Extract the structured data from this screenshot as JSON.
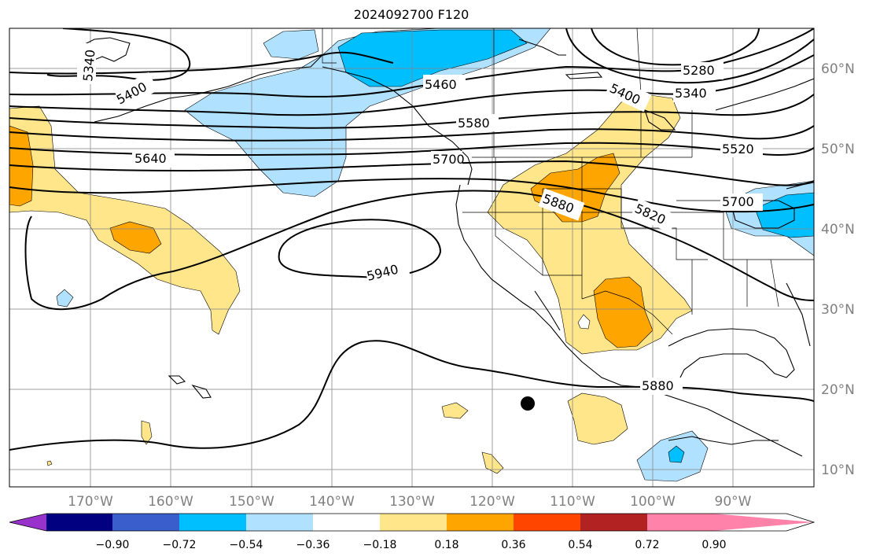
{
  "title": "2024092700 F120",
  "axes": {
    "lon_labels": [
      "170°W",
      "160°W",
      "150°W",
      "140°W",
      "130°W",
      "120°W",
      "110°W",
      "100°W",
      "90°W"
    ],
    "lat_labels": [
      "60°N",
      "50°N",
      "40°N",
      "30°N",
      "20°N",
      "10°N"
    ]
  },
  "contour_labels": [
    "5340",
    "5400",
    "5460",
    "5580",
    "5640",
    "5700",
    "5940",
    "5880",
    "5820",
    "5280",
    "5340",
    "5400",
    "5520",
    "5700",
    "5880"
  ],
  "colorbar": {
    "tick_labels": [
      "−0.90",
      "−0.72",
      "−0.54",
      "−0.36",
      "−0.18",
      "0.18",
      "0.36",
      "0.54",
      "0.72",
      "0.90"
    ],
    "colors": [
      "#9932cc",
      "#000080",
      "#3a5fcd",
      "#00bfff",
      "#b0e2ff",
      "#ffffff",
      "#ffe68a",
      "#ffa500",
      "#ff4500",
      "#b22222",
      "#ff82ab"
    ]
  },
  "storm_marker": "filled-circle"
}
